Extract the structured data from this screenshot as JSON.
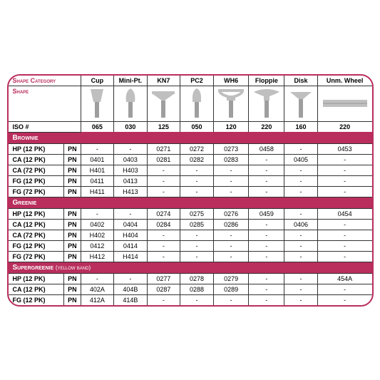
{
  "colors": {
    "brand": "#b92e5d",
    "border": "#333333",
    "shape_fill": "#bfbfbf",
    "shank_fill": "#9e9e9e",
    "text": "#000000"
  },
  "header": {
    "shape_category": "Shape Category",
    "shape": "Shape",
    "iso": "ISO #",
    "pn": "PN"
  },
  "shapes": [
    {
      "label": "Cup",
      "iso": "065"
    },
    {
      "label": "Mini-Pt.",
      "iso": "030"
    },
    {
      "label": "KN7",
      "iso": "125"
    },
    {
      "label": "PC2",
      "iso": "050"
    },
    {
      "label": "WH6",
      "iso": "120"
    },
    {
      "label": "Floppie",
      "iso": "220"
    },
    {
      "label": "Disk",
      "iso": "160"
    },
    {
      "label": "Unm. Wheel",
      "iso": "220"
    }
  ],
  "sections": [
    {
      "title": "Brownie",
      "note": "",
      "rows": [
        {
          "label": "HP (12 PK)",
          "vals": [
            "-",
            "-",
            "0271",
            "0272",
            "0273",
            "0458",
            "-",
            "0453"
          ]
        },
        {
          "label": "CA (12 PK)",
          "vals": [
            "0401",
            "0403",
            "0281",
            "0282",
            "0283",
            "-",
            "0405",
            "-"
          ]
        },
        {
          "label": "CA (72 PK)",
          "vals": [
            "H401",
            "H403",
            "-",
            "-",
            "-",
            "-",
            "-",
            "-"
          ]
        },
        {
          "label": "FG (12 PK)",
          "vals": [
            "0411",
            "0413",
            "-",
            "-",
            "-",
            "-",
            "-",
            "-"
          ]
        },
        {
          "label": "FG (72 PK)",
          "vals": [
            "H411",
            "H413",
            "-",
            "-",
            "-",
            "-",
            "-",
            "-"
          ]
        }
      ]
    },
    {
      "title": "Greenie",
      "note": "",
      "rows": [
        {
          "label": "HP (12 PK)",
          "vals": [
            "-",
            "-",
            "0274",
            "0275",
            "0276",
            "0459",
            "-",
            "0454"
          ]
        },
        {
          "label": "CA (12 PK)",
          "vals": [
            "0402",
            "0404",
            "0284",
            "0285",
            "0286",
            "-",
            "0406",
            "-"
          ]
        },
        {
          "label": "CA (72 PK)",
          "vals": [
            "H402",
            "H404",
            "-",
            "-",
            "-",
            "-",
            "-",
            "-"
          ]
        },
        {
          "label": "FG (12 PK)",
          "vals": [
            "0412",
            "0414",
            "-",
            "-",
            "-",
            "-",
            "-",
            "-"
          ]
        },
        {
          "label": "FG (72 PK)",
          "vals": [
            "H412",
            "H414",
            "-",
            "-",
            "-",
            "-",
            "-",
            "-"
          ]
        }
      ]
    },
    {
      "title": "Supergreenie",
      "note": "(yellow band)",
      "rows": [
        {
          "label": "HP (12 PK)",
          "vals": [
            "-",
            "-",
            "0277",
            "0278",
            "0279",
            "-",
            "-",
            "454A"
          ]
        },
        {
          "label": "CA (12 PK)",
          "vals": [
            "402A",
            "404B",
            "0287",
            "0288",
            "0289",
            "-",
            "-",
            "-"
          ]
        },
        {
          "label": "FG (12 PK)",
          "vals": [
            "412A",
            "414B",
            "-",
            "-",
            "-",
            "-",
            "-",
            "-"
          ]
        }
      ]
    }
  ]
}
